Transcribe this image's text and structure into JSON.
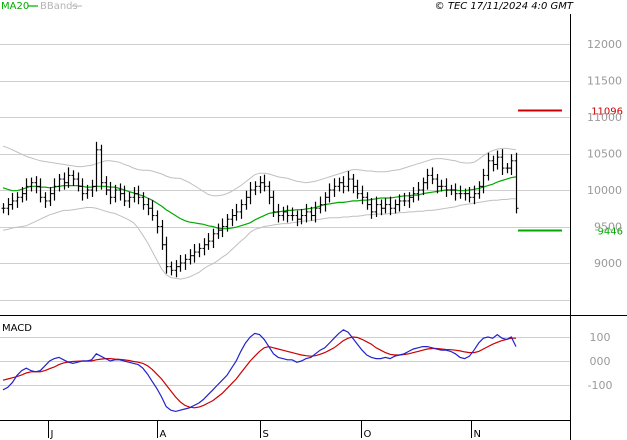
{
  "header": {
    "legend_ma": "MA20",
    "legend_bb": "BBands",
    "copyright": "© TEC 17/11/2024 4:0 GMT"
  },
  "macd_label": "MACD",
  "colors": {
    "grid": "#cfcfcf",
    "bars": "#000000",
    "ma": "#00aa00",
    "bands": "#c0c0c0",
    "resistance": "#cc0000",
    "support": "#00aa00",
    "macd_line": "#2222cc",
    "signal_line": "#cc0000",
    "axis_text": "#9a9a9a"
  },
  "chart_data": [
    {
      "type": "line",
      "title": "",
      "chart": "price-ohlc-bars",
      "y_ticks": [
        "9000",
        "9500",
        "10000",
        "10500",
        "11000",
        "11500",
        "12000"
      ],
      "ylim": [
        8600,
        12400
      ],
      "x_ticks": [
        "J",
        "A",
        "S",
        "O",
        "N"
      ],
      "levels": [
        {
          "label": "11096",
          "value": 11096,
          "color": "#cc0000"
        },
        {
          "label": "9446",
          "value": 9446,
          "color": "#00aa00"
        }
      ],
      "close": [
        9750,
        9800,
        9850,
        9900,
        9950,
        10050,
        10100,
        10050,
        9900,
        9850,
        9950,
        10050,
        10150,
        10100,
        10200,
        10150,
        10050,
        9950,
        10000,
        10050,
        10550,
        10100,
        10000,
        9900,
        10000,
        9950,
        9850,
        9900,
        9950,
        9900,
        9800,
        9750,
        9650,
        9500,
        9250,
        8950,
        8900,
        8950,
        9000,
        9050,
        9100,
        9150,
        9200,
        9250,
        9300,
        9400,
        9450,
        9500,
        9600,
        9650,
        9700,
        9800,
        9900,
        10000,
        10050,
        10100,
        10050,
        9900,
        9700,
        9650,
        9700,
        9650,
        9650,
        9600,
        9650,
        9700,
        9650,
        9750,
        9800,
        9900,
        10000,
        10050,
        10100,
        10050,
        10150,
        10050,
        9950,
        9900,
        9800,
        9700,
        9800,
        9750,
        9800,
        9750,
        9800,
        9850,
        9850,
        9900,
        9950,
        10000,
        10100,
        10200,
        10150,
        10050,
        10050,
        10000,
        10000,
        9950,
        9950,
        9950,
        9900,
        9950,
        10050,
        10200,
        10400,
        10350,
        10450,
        10300,
        10300,
        10400,
        9750
      ],
      "ma20": [
        10030,
        10010,
        9990,
        9990,
        10010,
        10030,
        10050,
        10050,
        10040,
        10040,
        10030,
        10040,
        10050,
        10060,
        10060,
        10060,
        10060,
        10050,
        10040,
        10040,
        10050,
        10050,
        10050,
        10040,
        10040,
        10020,
        10000,
        9980,
        9960,
        9940,
        9920,
        9890,
        9860,
        9820,
        9780,
        9730,
        9690,
        9650,
        9610,
        9580,
        9560,
        9550,
        9540,
        9530,
        9510,
        9500,
        9480,
        9470,
        9470,
        9480,
        9490,
        9510,
        9530,
        9550,
        9590,
        9620,
        9650,
        9680,
        9690,
        9700,
        9710,
        9720,
        9720,
        9730,
        9730,
        9740,
        9750,
        9760,
        9780,
        9800,
        9810,
        9820,
        9830,
        9830,
        9840,
        9850,
        9850,
        9860,
        9860,
        9870,
        9880,
        9890,
        9890,
        9890,
        9900,
        9910,
        9920,
        9920,
        9930,
        9930,
        9950,
        9960,
        9970,
        9980,
        9990,
        10000,
        10000,
        10000,
        9990,
        9990,
        10000,
        10010,
        10020,
        10040,
        10060,
        10080,
        10110,
        10130,
        10150,
        10170,
        10180
      ],
      "bb_upper": [
        10600,
        10580,
        10550,
        10520,
        10490,
        10460,
        10440,
        10420,
        10400,
        10390,
        10380,
        10370,
        10360,
        10350,
        10340,
        10330,
        10320,
        10320,
        10330,
        10340,
        10360,
        10380,
        10400,
        10400,
        10390,
        10380,
        10350,
        10330,
        10300,
        10280,
        10270,
        10270,
        10260,
        10240,
        10220,
        10190,
        10170,
        10160,
        10160,
        10130,
        10100,
        10060,
        10020,
        9980,
        9940,
        9920,
        9920,
        9930,
        9950,
        9980,
        10020,
        10060,
        10110,
        10160,
        10210,
        10230,
        10230,
        10220,
        10200,
        10180,
        10170,
        10160,
        10140,
        10120,
        10110,
        10100,
        10110,
        10120,
        10140,
        10160,
        10180,
        10200,
        10220,
        10240,
        10260,
        10280,
        10280,
        10270,
        10260,
        10260,
        10250,
        10250,
        10250,
        10260,
        10270,
        10280,
        10300,
        10320,
        10340,
        10360,
        10380,
        10400,
        10420,
        10430,
        10430,
        10420,
        10410,
        10400,
        10380,
        10370,
        10370,
        10380,
        10420,
        10470,
        10510,
        10540,
        10560,
        10570,
        10570,
        10560,
        10550
      ],
      "bb_lower": [
        9450,
        9460,
        9480,
        9490,
        9500,
        9510,
        9540,
        9570,
        9600,
        9630,
        9660,
        9680,
        9700,
        9720,
        9720,
        9730,
        9740,
        9750,
        9760,
        9760,
        9750,
        9730,
        9710,
        9690,
        9680,
        9650,
        9620,
        9590,
        9550,
        9480,
        9380,
        9280,
        9160,
        9040,
        8920,
        8840,
        8800,
        8790,
        8780,
        8790,
        8810,
        8840,
        8870,
        8920,
        8960,
        8990,
        9030,
        9080,
        9120,
        9180,
        9240,
        9300,
        9350,
        9420,
        9460,
        9480,
        9500,
        9510,
        9520,
        9530,
        9540,
        9540,
        9550,
        9560,
        9570,
        9580,
        9580,
        9590,
        9600,
        9610,
        9620,
        9620,
        9620,
        9630,
        9630,
        9640,
        9640,
        9650,
        9660,
        9660,
        9670,
        9670,
        9670,
        9680,
        9680,
        9690,
        9690,
        9700,
        9700,
        9710,
        9710,
        9720,
        9720,
        9730,
        9740,
        9750,
        9760,
        9770,
        9790,
        9800,
        9810,
        9820,
        9830,
        9840,
        9850,
        9860,
        9860,
        9870,
        9870,
        9880,
        9880
      ]
    },
    {
      "type": "line",
      "chart": "MACD",
      "y_ticks": [
        "-100",
        "000",
        "100"
      ],
      "ylim": [
        -220,
        170
      ],
      "series": [
        {
          "name": "",
          "values": [
            -120,
            -110,
            -90,
            -60,
            -40,
            -30,
            -40,
            -45,
            -40,
            -20,
            0,
            10,
            15,
            5,
            -5,
            -10,
            -5,
            0,
            0,
            5,
            30,
            20,
            10,
            0,
            5,
            5,
            0,
            -5,
            -10,
            -15,
            -30,
            -55,
            -85,
            -115,
            -150,
            -190,
            -205,
            -210,
            -205,
            -200,
            -195,
            -185,
            -175,
            -160,
            -140,
            -120,
            -100,
            -80,
            -60,
            -30,
            0,
            40,
            75,
            100,
            115,
            110,
            90,
            60,
            30,
            15,
            10,
            5,
            5,
            -5,
            0,
            10,
            15,
            30,
            45,
            55,
            75,
            95,
            115,
            130,
            120,
            95,
            70,
            45,
            25,
            15,
            10,
            10,
            15,
            10,
            20,
            25,
            30,
            40,
            50,
            55,
            60,
            60,
            55,
            50,
            45,
            45,
            40,
            30,
            15,
            10,
            20,
            45,
            75,
            95,
            100,
            95,
            110,
            95,
            90,
            100,
            60
          ]
        },
        {
          "name": "",
          "values": [
            -80,
            -75,
            -70,
            -65,
            -58,
            -50,
            -45,
            -45,
            -45,
            -40,
            -32,
            -25,
            -15,
            -8,
            -4,
            -2,
            -1,
            0,
            0,
            0,
            5,
            8,
            10,
            10,
            8,
            7,
            5,
            2,
            -2,
            -5,
            -10,
            -20,
            -35,
            -55,
            -75,
            -100,
            -125,
            -150,
            -170,
            -185,
            -192,
            -195,
            -192,
            -185,
            -175,
            -165,
            -150,
            -135,
            -115,
            -95,
            -75,
            -50,
            -25,
            0,
            20,
            40,
            55,
            60,
            55,
            50,
            45,
            40,
            35,
            30,
            25,
            22,
            20,
            22,
            28,
            35,
            45,
            55,
            70,
            85,
            95,
            100,
            98,
            90,
            80,
            70,
            55,
            45,
            35,
            28,
            25,
            25,
            27,
            30,
            35,
            40,
            45,
            50,
            52,
            52,
            50,
            48,
            47,
            45,
            42,
            38,
            35,
            35,
            40,
            50,
            60,
            70,
            78,
            85,
            90,
            95,
            95
          ]
        }
      ]
    }
  ]
}
